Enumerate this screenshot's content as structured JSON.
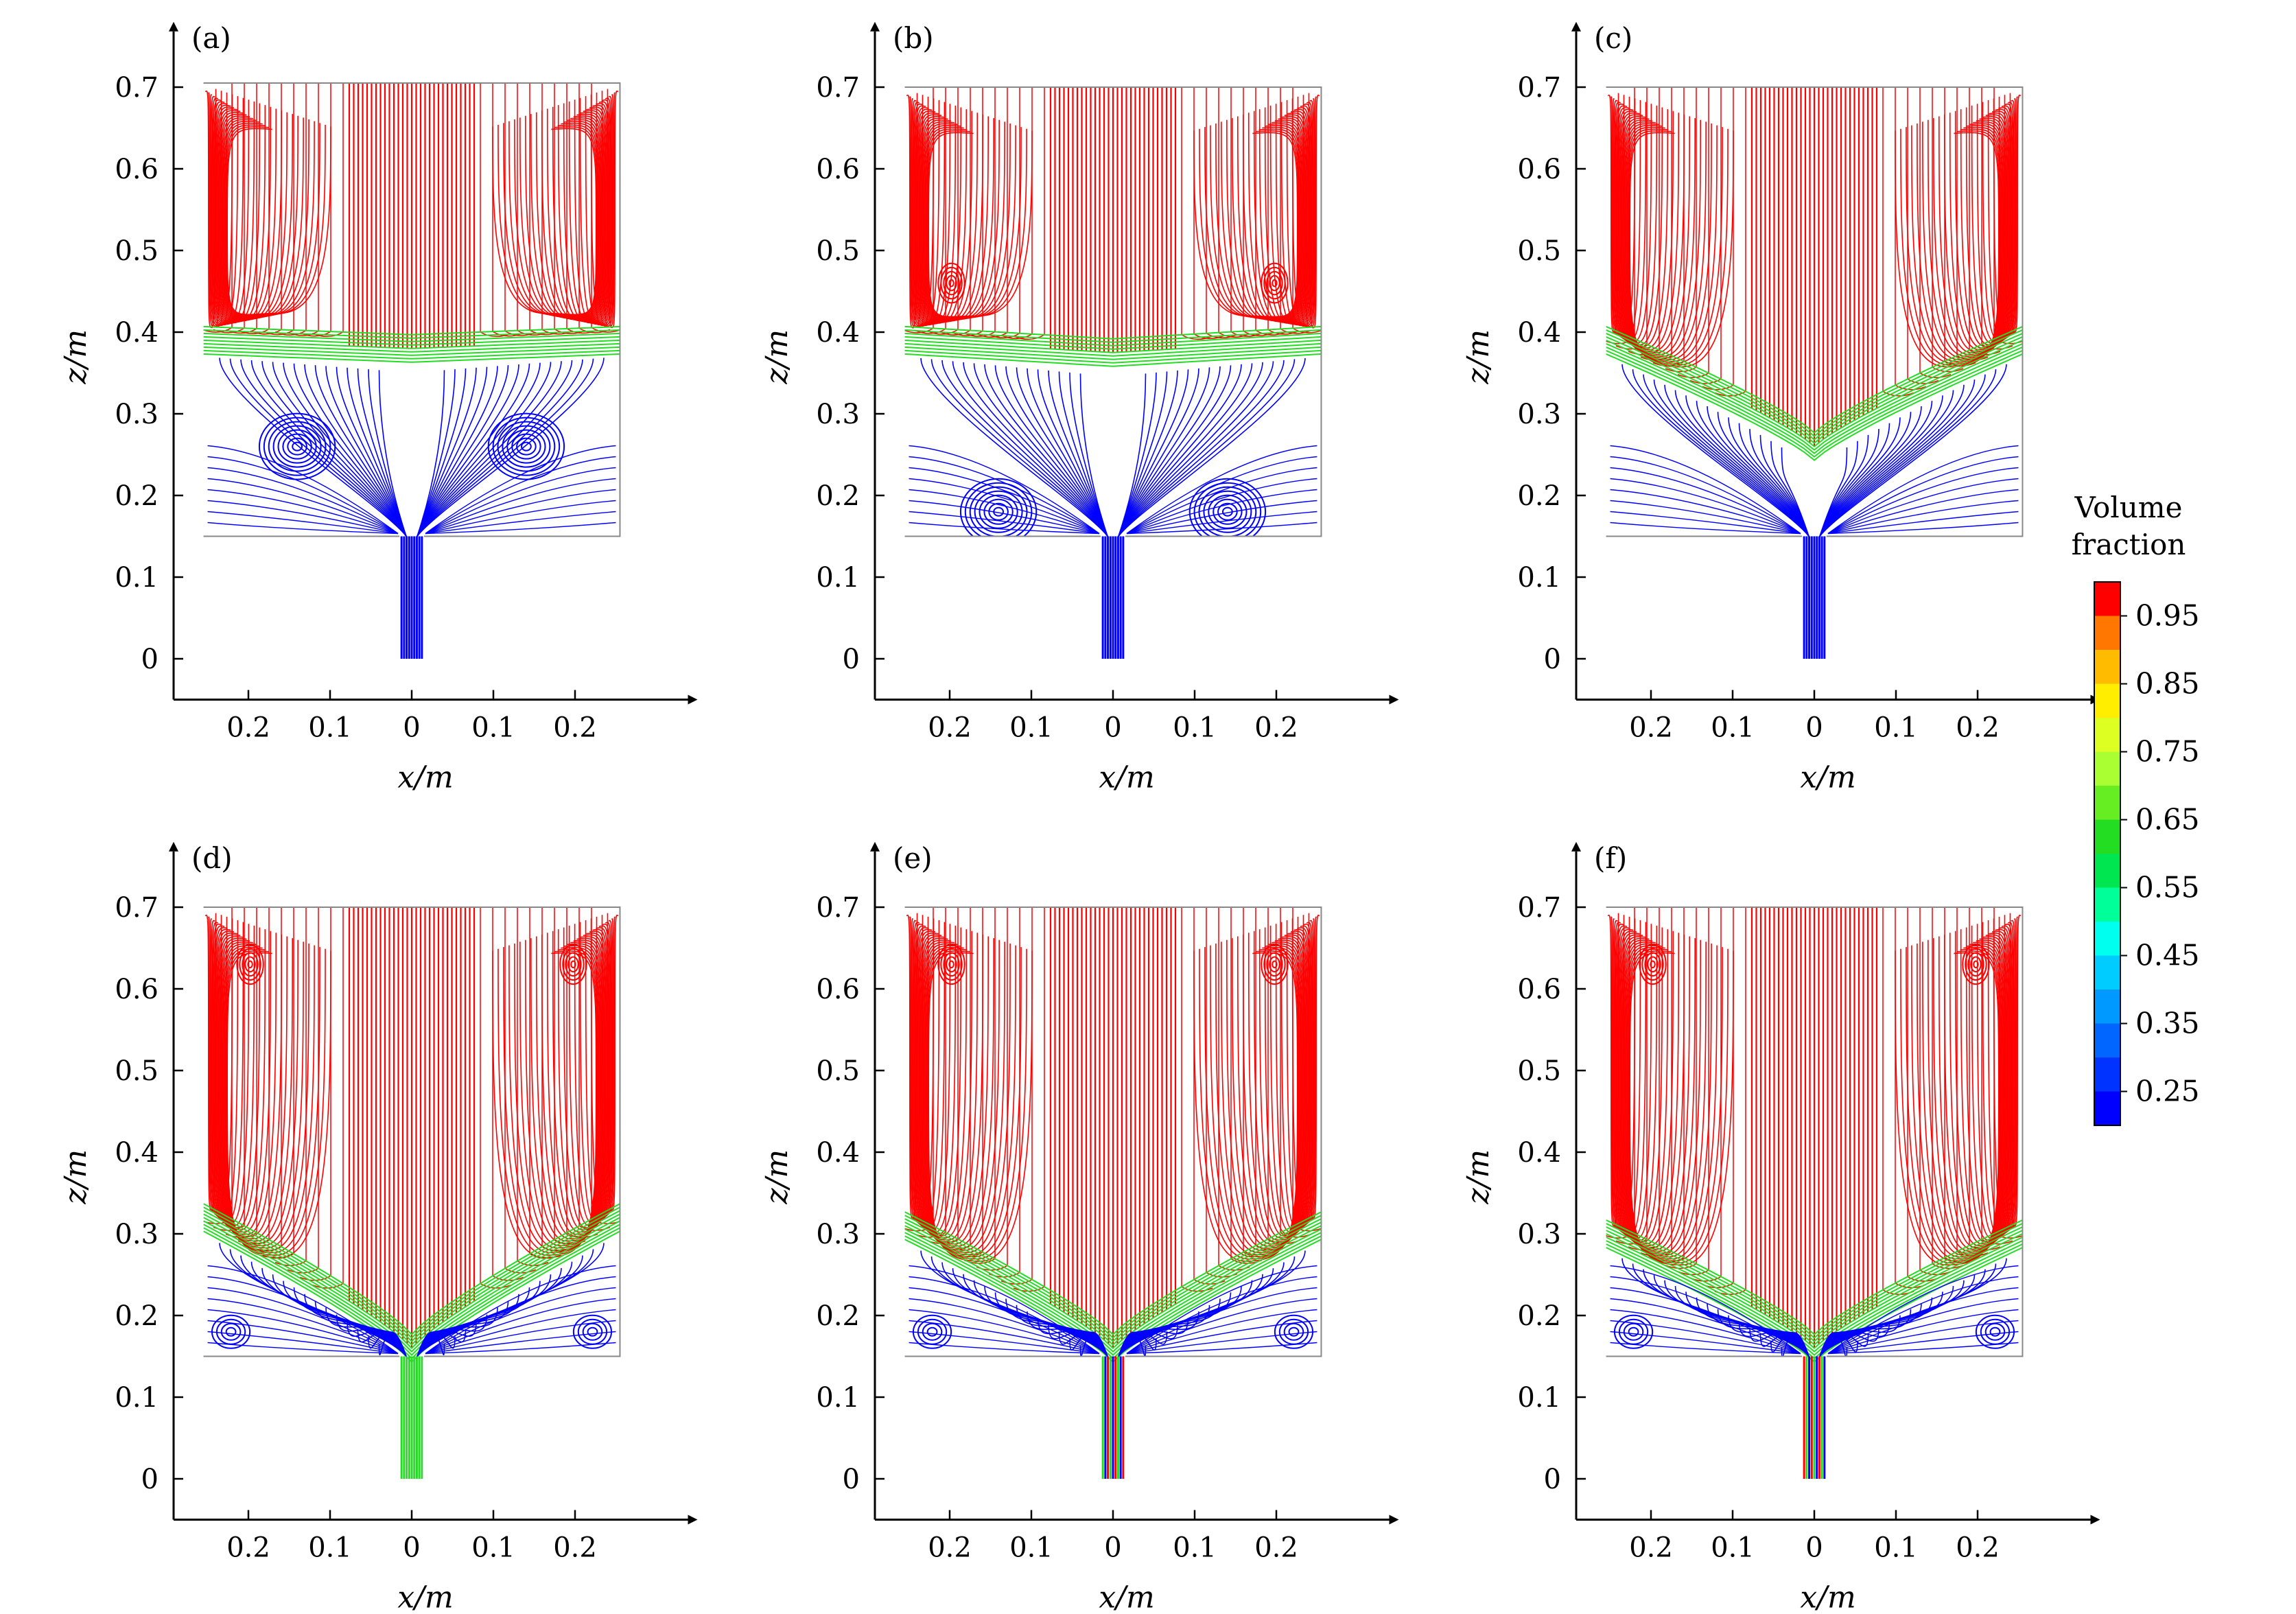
{
  "chart_data": [
    {
      "type": "streamline",
      "panel_label": "(a)",
      "xlabel": "x/m",
      "ylabel": "z/m",
      "x_ticks": [
        "0.2",
        "0.1",
        "0",
        "0.1",
        "0.2"
      ],
      "x_tick_values": [
        -0.2,
        -0.1,
        0,
        0.1,
        0.2
      ],
      "y_ticks": [
        "0",
        "0.1",
        "0.2",
        "0.3",
        "0.4",
        "0.5",
        "0.6",
        "0.7"
      ],
      "y_tick_values": [
        0,
        0.1,
        0.2,
        0.3,
        0.4,
        0.5,
        0.6,
        0.7
      ],
      "xlim": [
        -0.3,
        0.35
      ],
      "ylim": [
        -0.05,
        0.78
      ],
      "vessel": {
        "x_range": [
          -0.255,
          0.255
        ],
        "z_range": [
          0.15,
          0.705
        ]
      },
      "nozzle": {
        "x_range": [
          -0.015,
          0.015
        ],
        "z_range": [
          0.0,
          0.15
        ]
      },
      "interface_z": [
        0.39,
        0.35
      ],
      "interface_shape": "flat",
      "lower_vortex_z": 0.26,
      "upper_vortex_z": 0.0,
      "nozzle_phase": "blue"
    },
    {
      "type": "streamline",
      "panel_label": "(b)",
      "xlabel": "x/m",
      "ylabel": "z/m",
      "x_ticks": [
        "0.2",
        "0.1",
        "0",
        "0.1",
        "0.2"
      ],
      "x_tick_values": [
        -0.2,
        -0.1,
        0,
        0.1,
        0.2
      ],
      "y_ticks": [
        "0",
        "0.1",
        "0.2",
        "0.3",
        "0.4",
        "0.5",
        "0.6",
        "0.7"
      ],
      "y_tick_values": [
        0,
        0.1,
        0.2,
        0.3,
        0.4,
        0.5,
        0.6,
        0.7
      ],
      "xlim": [
        -0.3,
        0.35
      ],
      "ylim": [
        -0.05,
        0.78
      ],
      "vessel": {
        "x_range": [
          -0.255,
          0.255
        ],
        "z_range": [
          0.15,
          0.7
        ]
      },
      "nozzle": {
        "x_range": [
          -0.015,
          0.015
        ],
        "z_range": [
          0.0,
          0.15
        ]
      },
      "interface_z": [
        0.39,
        0.33
      ],
      "interface_shape": "flat",
      "lower_vortex_z": 0.18,
      "upper_vortex_z": 0.46,
      "nozzle_phase": "blue"
    },
    {
      "type": "streamline",
      "panel_label": "(c)",
      "xlabel": "x/m",
      "ylabel": "z/m",
      "x_ticks": [
        "0.2",
        "0.1",
        "0",
        "0.1",
        "0.2"
      ],
      "x_tick_values": [
        -0.2,
        -0.1,
        0,
        0.1,
        0.2
      ],
      "y_ticks": [
        "0",
        "0.1",
        "0.2",
        "0.3",
        "0.4",
        "0.5",
        "0.6",
        "0.7"
      ],
      "y_tick_values": [
        0,
        0.1,
        0.2,
        0.3,
        0.4,
        0.5,
        0.6,
        0.7
      ],
      "xlim": [
        -0.3,
        0.35
      ],
      "ylim": [
        -0.05,
        0.78
      ],
      "vessel": {
        "x_range": [
          -0.255,
          0.255
        ],
        "z_range": [
          0.15,
          0.7
        ]
      },
      "nozzle": {
        "x_range": [
          -0.015,
          0.015
        ],
        "z_range": [
          0.0,
          0.15
        ]
      },
      "interface_z": [
        0.39,
        0.26
      ],
      "interface_shape": "V",
      "lower_vortex_z": 0.0,
      "upper_vortex_z": 0.0,
      "nozzle_phase": "blue"
    },
    {
      "type": "streamline",
      "panel_label": "(d)",
      "xlabel": "x/m",
      "ylabel": "z/m",
      "x_ticks": [
        "0.2",
        "0.1",
        "0",
        "0.1",
        "0.2"
      ],
      "x_tick_values": [
        -0.2,
        -0.1,
        0,
        0.1,
        0.2
      ],
      "y_ticks": [
        "0",
        "0.1",
        "0.2",
        "0.3",
        "0.4",
        "0.5",
        "0.6",
        "0.7"
      ],
      "y_tick_values": [
        0,
        0.1,
        0.2,
        0.3,
        0.4,
        0.5,
        0.6,
        0.7
      ],
      "xlim": [
        -0.3,
        0.35
      ],
      "ylim": [
        -0.05,
        0.78
      ],
      "vessel": {
        "x_range": [
          -0.255,
          0.255
        ],
        "z_range": [
          0.15,
          0.7
        ]
      },
      "nozzle": {
        "x_range": [
          -0.015,
          0.015
        ],
        "z_range": [
          0.0,
          0.15
        ]
      },
      "interface_z": [
        0.32,
        0.16
      ],
      "interface_shape": "V",
      "lower_vortex_z": 0.18,
      "upper_vortex_z": 0.63,
      "nozzle_phase": "green"
    },
    {
      "type": "streamline",
      "panel_label": "(e)",
      "xlabel": "x/m",
      "ylabel": "z/m",
      "x_ticks": [
        "0.2",
        "0.1",
        "0",
        "0.1",
        "0.2"
      ],
      "x_tick_values": [
        -0.2,
        -0.1,
        0,
        0.1,
        0.2
      ],
      "y_ticks": [
        "0",
        "0.1",
        "0.2",
        "0.3",
        "0.4",
        "0.5",
        "0.6",
        "0.7"
      ],
      "y_tick_values": [
        0,
        0.1,
        0.2,
        0.3,
        0.4,
        0.5,
        0.6,
        0.7
      ],
      "xlim": [
        -0.3,
        0.35
      ],
      "ylim": [
        -0.05,
        0.78
      ],
      "vessel": {
        "x_range": [
          -0.255,
          0.255
        ],
        "z_range": [
          0.15,
          0.7
        ]
      },
      "nozzle": {
        "x_range": [
          -0.015,
          0.015
        ],
        "z_range": [
          0.0,
          0.15
        ]
      },
      "interface_z": [
        0.31,
        0.16
      ],
      "interface_shape": "V",
      "lower_vortex_z": 0.18,
      "upper_vortex_z": 0.63,
      "nozzle_phase": "mixed"
    },
    {
      "type": "streamline",
      "panel_label": "(f)",
      "xlabel": "x/m",
      "ylabel": "z/m",
      "x_ticks": [
        "0.2",
        "0.1",
        "0",
        "0.1",
        "0.2"
      ],
      "x_tick_values": [
        -0.2,
        -0.1,
        0,
        0.1,
        0.2
      ],
      "y_ticks": [
        "0",
        "0.1",
        "0.2",
        "0.3",
        "0.4",
        "0.5",
        "0.6",
        "0.7"
      ],
      "y_tick_values": [
        0,
        0.1,
        0.2,
        0.3,
        0.4,
        0.5,
        0.6,
        0.7
      ],
      "xlim": [
        -0.3,
        0.35
      ],
      "ylim": [
        -0.05,
        0.78
      ],
      "vessel": {
        "x_range": [
          -0.255,
          0.255
        ],
        "z_range": [
          0.15,
          0.7
        ]
      },
      "nozzle": {
        "x_range": [
          -0.015,
          0.015
        ],
        "z_range": [
          0.0,
          0.15
        ]
      },
      "interface_z": [
        0.3,
        0.16
      ],
      "interface_shape": "V",
      "lower_vortex_z": 0.18,
      "upper_vortex_z": 0.63,
      "nozzle_phase": "mixed-red"
    }
  ],
  "colorbar": {
    "title_line1": "Volume",
    "title_line2": "fraction",
    "tick_labels": [
      "0.95",
      "0.85",
      "0.75",
      "0.65",
      "0.55",
      "0.45",
      "0.35",
      "0.25"
    ],
    "tick_values": [
      0.95,
      0.85,
      0.75,
      0.65,
      0.55,
      0.45,
      0.35,
      0.25
    ],
    "range": [
      0.2,
      1.0
    ],
    "levels": [
      {
        "value": 0.225,
        "color": "#0000ff"
      },
      {
        "value": 0.275,
        "color": "#0033ff"
      },
      {
        "value": 0.325,
        "color": "#0066ff"
      },
      {
        "value": 0.375,
        "color": "#0099ff"
      },
      {
        "value": 0.425,
        "color": "#00ccff"
      },
      {
        "value": 0.475,
        "color": "#00ffee"
      },
      {
        "value": 0.525,
        "color": "#00ff99"
      },
      {
        "value": 0.575,
        "color": "#00e650"
      },
      {
        "value": 0.625,
        "color": "#22dd22"
      },
      {
        "value": 0.675,
        "color": "#66ee22"
      },
      {
        "value": 0.725,
        "color": "#aaff33"
      },
      {
        "value": 0.775,
        "color": "#ddff22"
      },
      {
        "value": 0.825,
        "color": "#ffee00"
      },
      {
        "value": 0.875,
        "color": "#ffbb00"
      },
      {
        "value": 0.925,
        "color": "#ff7700"
      },
      {
        "value": 0.975,
        "color": "#ff0000"
      }
    ]
  },
  "colors": {
    "liquid_upper": "#ff0000",
    "interface": "#22dd22",
    "liquid_lower": "#0000ff",
    "axis": "#000000",
    "vessel_outline": "#888888"
  }
}
